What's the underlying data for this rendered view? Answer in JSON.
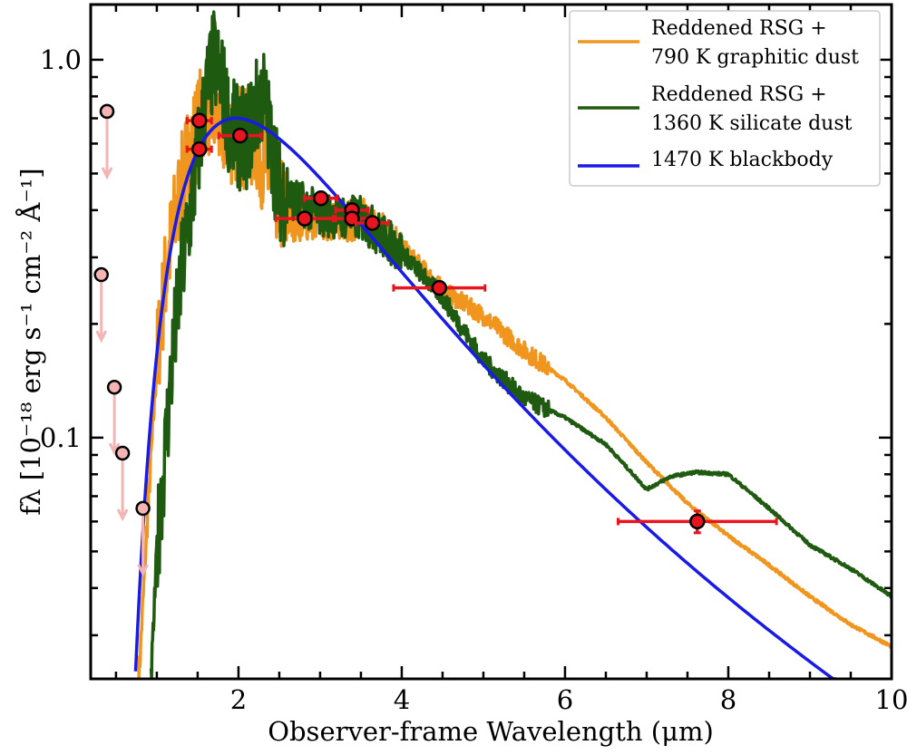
{
  "chart_data": {
    "type": "line",
    "title": "",
    "xlabel": "Observer-frame Wavelength (μm)",
    "ylabel": "fλ [10⁻¹⁸ erg s⁻¹ cm⁻² Å⁻¹]",
    "xlim": [
      0.19,
      10
    ],
    "ylim": [
      0.023,
      1.4
    ],
    "yscale": "log",
    "x_ticks": [
      2,
      4,
      6,
      8,
      10
    ],
    "x_tick_labels": [
      "2",
      "4",
      "6",
      "8",
      "10"
    ],
    "y_ticks": [
      0.1,
      1.0
    ],
    "y_tick_labels": [
      "0.1",
      "1.0"
    ],
    "grid": false,
    "legend_position": "top-right",
    "series": [
      {
        "name": "Reddened RSG + 790 K graphitic dust",
        "label_lines": [
          "Reddened RSG +",
          "790 K graphitic dust"
        ],
        "color": "#f0961e",
        "x": [
          0.78,
          0.9,
          1.0,
          1.1,
          1.2,
          1.3,
          1.4,
          1.5,
          1.6,
          1.7,
          1.8,
          1.9,
          2.0,
          2.2,
          2.4,
          2.6,
          3.0,
          3.5,
          4.0,
          4.5,
          5.0,
          5.5,
          6.0,
          6.5,
          7.0,
          7.5,
          8.0,
          8.5,
          9.0,
          9.5,
          10.0
        ],
        "y": [
          0.023,
          0.07,
          0.158,
          0.26,
          0.36,
          0.46,
          0.58,
          0.66,
          0.78,
          0.72,
          0.66,
          0.64,
          0.63,
          0.62,
          0.48,
          0.38,
          0.38,
          0.38,
          0.32,
          0.246,
          0.21,
          0.17,
          0.142,
          0.113,
          0.086,
          0.067,
          0.055,
          0.046,
          0.038,
          0.032,
          0.028
        ]
      },
      {
        "name": "Reddened RSG + 1360 K silicate dust",
        "label_lines": [
          "Reddened RSG +",
          "1360 K silicate dust"
        ],
        "color": "#1e5a0f",
        "x": [
          0.93,
          1.0,
          1.1,
          1.2,
          1.3,
          1.4,
          1.5,
          1.6,
          1.7,
          1.8,
          1.9,
          2.0,
          2.1,
          2.2,
          2.3,
          2.4,
          2.5,
          3.0,
          3.5,
          4.0,
          4.5,
          5.0,
          5.5,
          6.0,
          6.5,
          7.0,
          7.3,
          7.6,
          8.0,
          8.5,
          9.0,
          9.5,
          10.0
        ],
        "y": [
          0.023,
          0.05,
          0.091,
          0.17,
          0.27,
          0.38,
          0.55,
          0.8,
          1.0,
          0.85,
          0.66,
          0.62,
          0.62,
          0.72,
          0.82,
          0.6,
          0.45,
          0.39,
          0.38,
          0.31,
          0.235,
          0.16,
          0.127,
          0.113,
          0.096,
          0.073,
          0.079,
          0.081,
          0.08,
          0.065,
          0.052,
          0.045,
          0.038
        ]
      },
      {
        "name": "1470 K blackbody",
        "label_lines": [
          "1470 K blackbody"
        ],
        "color": "#1a1ae6",
        "temperature_K": 1470,
        "peak_value": 0.7
      }
    ],
    "detections": {
      "color": "#e8141e",
      "points": [
        {
          "x": 1.52,
          "y": 0.69,
          "xerr": 0.15
        },
        {
          "x": 1.52,
          "y": 0.58,
          "xerr": 0.15
        },
        {
          "x": 2.02,
          "y": 0.63,
          "xerr": 0.26
        },
        {
          "x": 3.01,
          "y": 0.43,
          "xerr": 0.2
        },
        {
          "x": 2.81,
          "y": 0.38,
          "xerr": 0.35
        },
        {
          "x": 3.39,
          "y": 0.4,
          "xerr": 0.2
        },
        {
          "x": 3.39,
          "y": 0.38,
          "xerr": 0.2
        },
        {
          "x": 3.64,
          "y": 0.37,
          "xerr": 0.2
        },
        {
          "x": 4.46,
          "y": 0.249,
          "xerr": 0.56
        },
        {
          "x": 7.62,
          "y": 0.06,
          "xerr": 0.97,
          "yerr_low": 0.056,
          "yerr_high": 0.064
        }
      ]
    },
    "upper_limits": {
      "color": "#f4b4b4",
      "points": [
        {
          "x": 0.39,
          "y": 0.73
        },
        {
          "x": 0.32,
          "y": 0.27
        },
        {
          "x": 0.48,
          "y": 0.136
        },
        {
          "x": 0.58,
          "y": 0.091
        },
        {
          "x": 0.83,
          "y": 0.065
        }
      ]
    }
  }
}
